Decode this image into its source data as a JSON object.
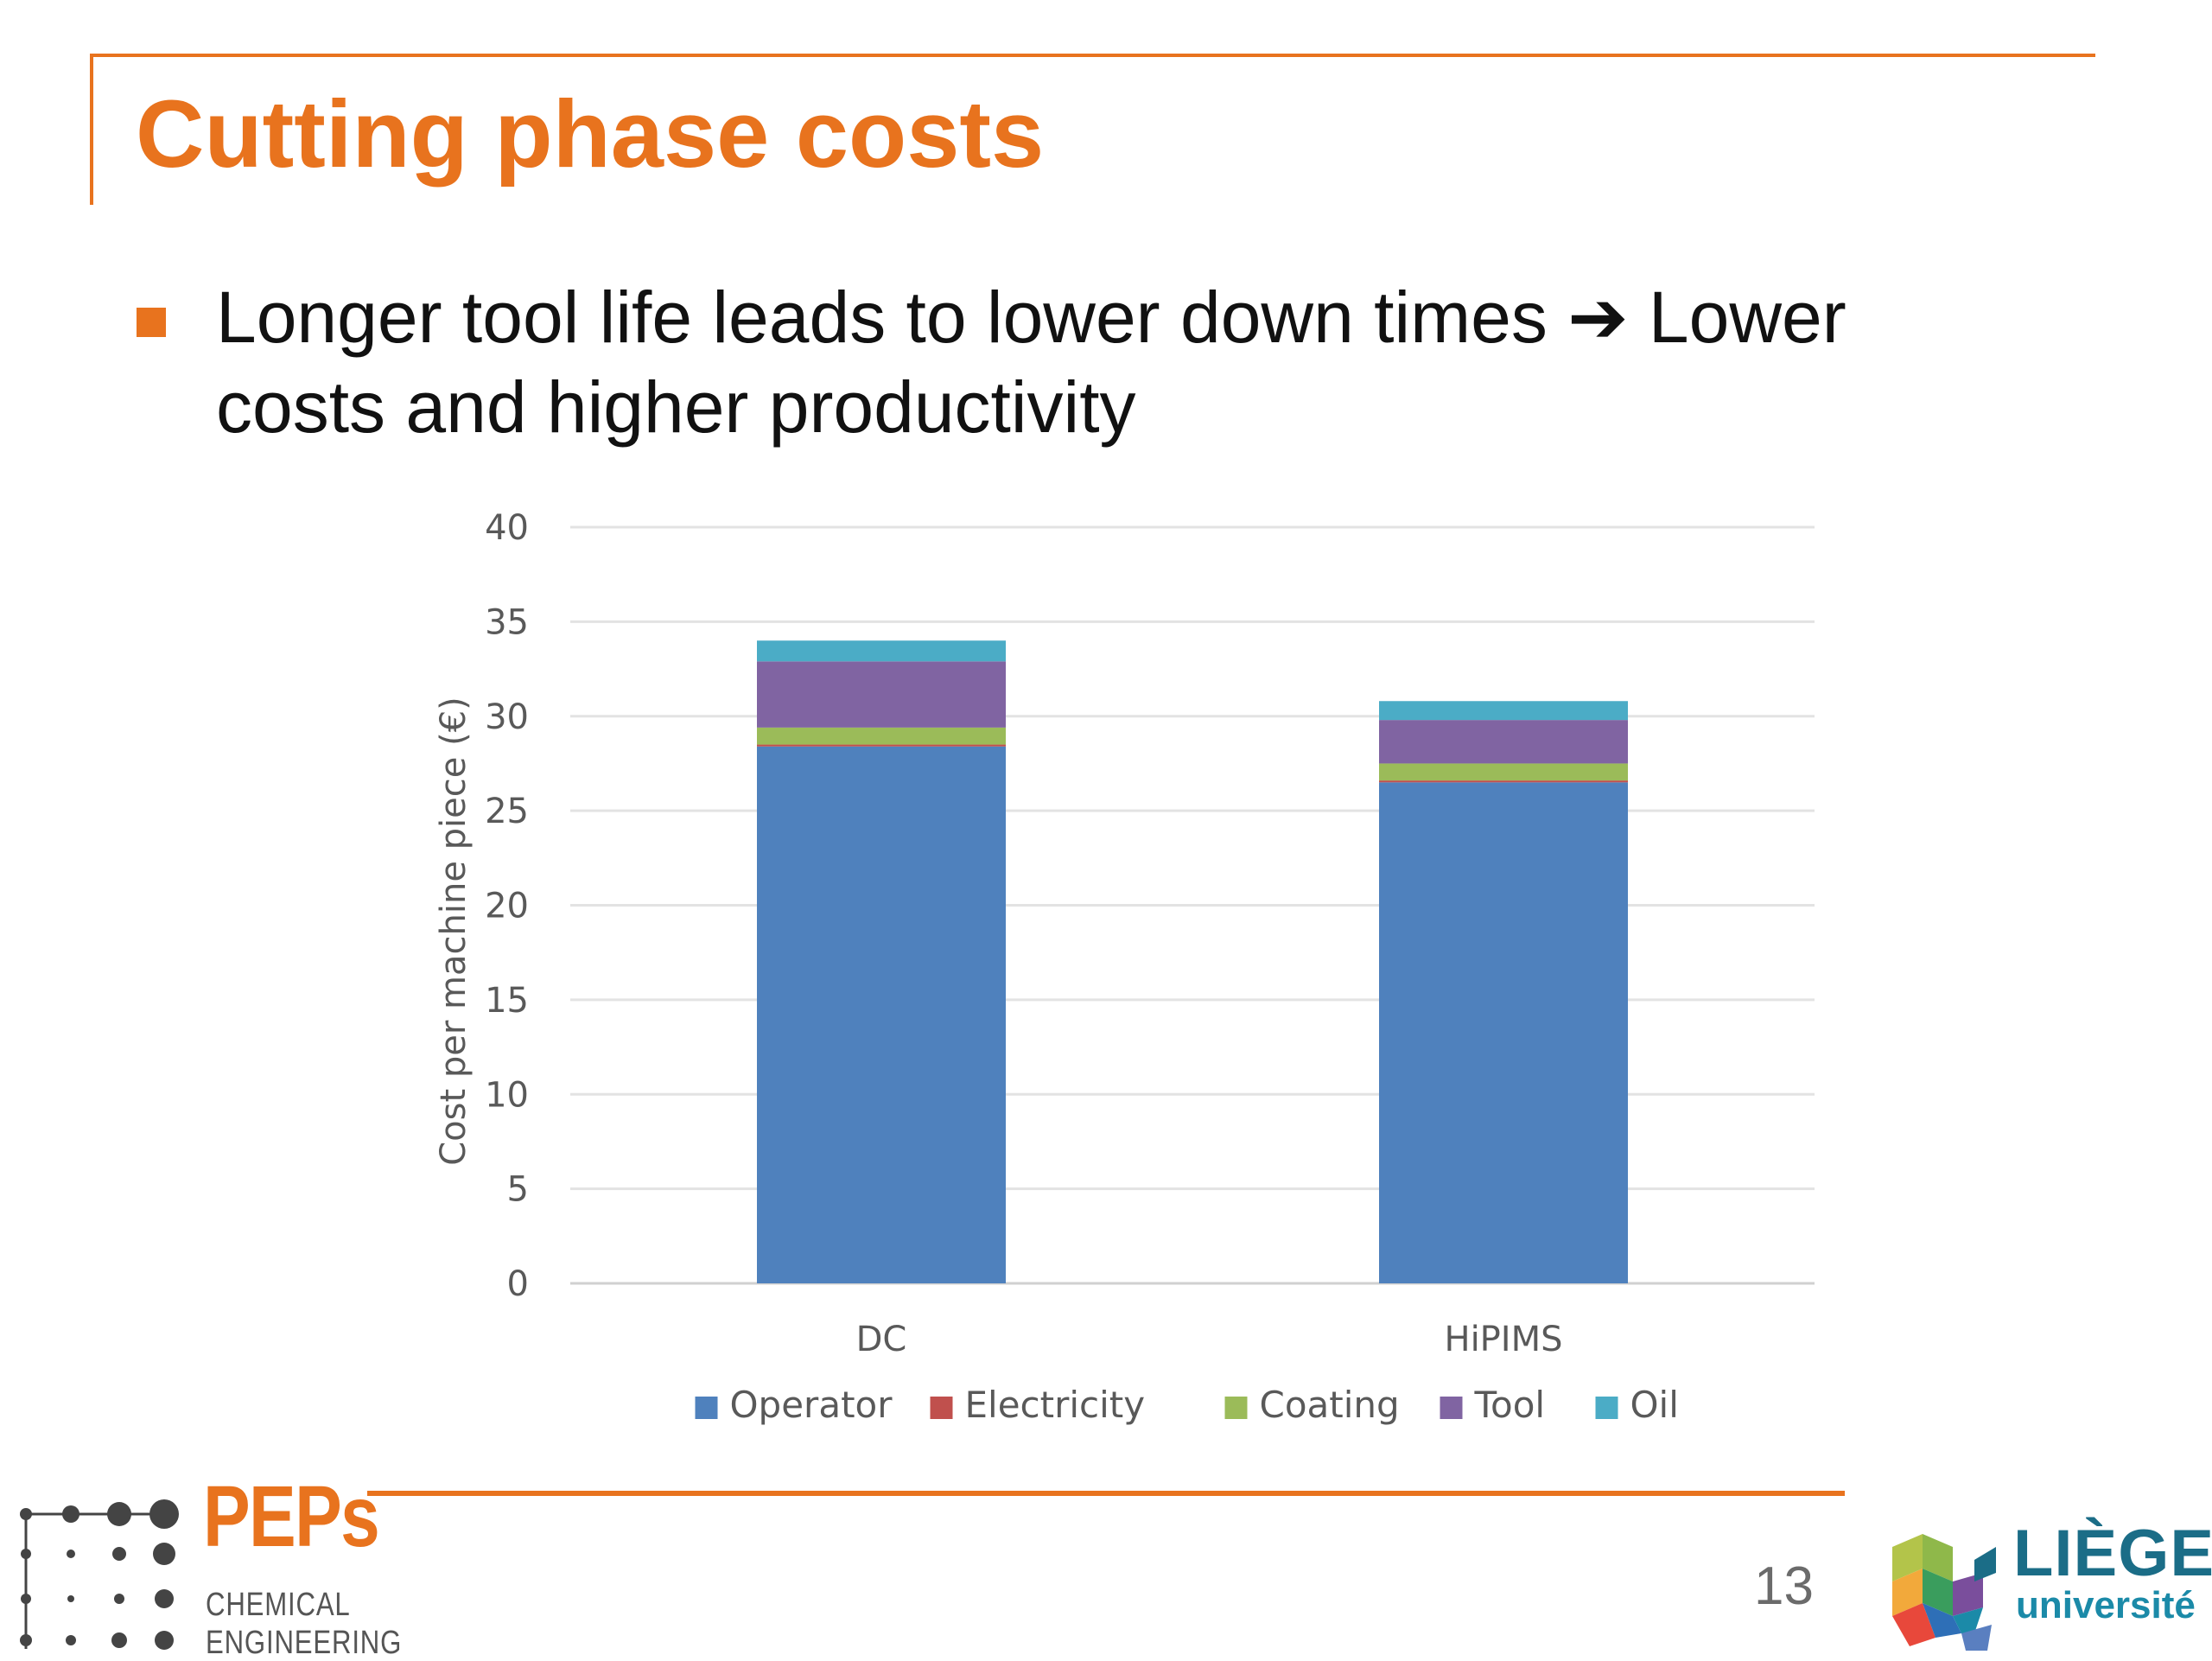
{
  "slide": {
    "title": "Cutting phase costs",
    "bullet": "Longer tool life leads to lower down times ➔ Lower costs and higher productivity",
    "page_number": "13",
    "accent_color": "#e8731e"
  },
  "chart_data": {
    "type": "bar",
    "stacked": true,
    "categories": [
      "DC",
      "HiPIMS"
    ],
    "series": [
      {
        "name": "Operator",
        "color": "#4f81bd",
        "values": [
          28.4,
          26.5
        ]
      },
      {
        "name": "Electricity",
        "color": "#c0504d",
        "values": [
          0.1,
          0.1
        ]
      },
      {
        "name": "Coating",
        "color": "#9bbb59",
        "values": [
          0.9,
          0.9
        ]
      },
      {
        "name": "Tool",
        "color": "#8064a2",
        "values": [
          3.5,
          2.3
        ]
      },
      {
        "name": "Oil",
        "color": "#4bacc6",
        "values": [
          1.1,
          1.0
        ]
      }
    ],
    "ylabel": "Cost per machine piece (€)",
    "xlabel": "",
    "ylim": [
      0,
      40
    ],
    "yticks": [
      0,
      5,
      10,
      15,
      20,
      25,
      30,
      35,
      40
    ],
    "grid": true,
    "legend_position": "bottom"
  },
  "footer": {
    "peps_title": "PEPs",
    "peps_line1": "CHEMICAL",
    "peps_line2": "ENGINEERING",
    "liege_name": "LIÈGE",
    "liege_sub": "université"
  }
}
